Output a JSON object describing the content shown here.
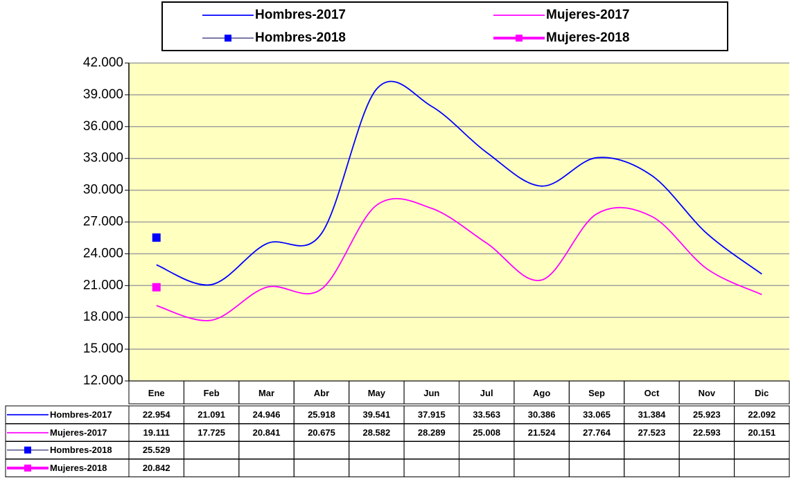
{
  "chart_data": {
    "type": "line",
    "categories": [
      "Ene",
      "Feb",
      "Mar",
      "Abr",
      "May",
      "Jun",
      "Jul",
      "Ago",
      "Sep",
      "Oct",
      "Nov",
      "Dic"
    ],
    "series": [
      {
        "name": "Hombres-2017",
        "color": "#0000ff",
        "marker": "none",
        "values": [
          22954,
          21091,
          24946,
          25918,
          39541,
          37915,
          33563,
          30386,
          33065,
          31384,
          25923,
          22092
        ],
        "value_labels": [
          "22.954",
          "21.091",
          "24.946",
          "25.918",
          "39.541",
          "37.915",
          "33.563",
          "30.386",
          "33.065",
          "31.384",
          "25.923",
          "22.092"
        ]
      },
      {
        "name": "Mujeres-2017",
        "color": "#ff00ff",
        "marker": "none",
        "values": [
          19111,
          17725,
          20841,
          20675,
          28582,
          28289,
          25008,
          21524,
          27764,
          27523,
          22593,
          20151
        ],
        "value_labels": [
          "19.111",
          "17.725",
          "20.841",
          "20.675",
          "28.582",
          "28.289",
          "25.008",
          "21.524",
          "27.764",
          "27.523",
          "22.593",
          "20.151"
        ]
      },
      {
        "name": "Hombres-2018",
        "color": "#0000ff",
        "marker": "square",
        "values": [
          25529,
          null,
          null,
          null,
          null,
          null,
          null,
          null,
          null,
          null,
          null,
          null
        ],
        "value_labels": [
          "25.529",
          null,
          null,
          null,
          null,
          null,
          null,
          null,
          null,
          null,
          null,
          null
        ]
      },
      {
        "name": "Mujeres-2018",
        "color": "#ff00ff",
        "marker": "square",
        "values": [
          20842,
          null,
          null,
          null,
          null,
          null,
          null,
          null,
          null,
          null,
          null,
          null
        ],
        "value_labels": [
          "20.842",
          null,
          null,
          null,
          null,
          null,
          null,
          null,
          null,
          null,
          null,
          null
        ]
      }
    ],
    "ylim": [
      12000,
      42000
    ],
    "yticks": [
      {
        "value": 12000,
        "label": "12.000"
      },
      {
        "value": 15000,
        "label": "15.000"
      },
      {
        "value": 18000,
        "label": "18.000"
      },
      {
        "value": 21000,
        "label": "21.000"
      },
      {
        "value": 24000,
        "label": "24.000"
      },
      {
        "value": 27000,
        "label": "27.000"
      },
      {
        "value": 30000,
        "label": "30.000"
      },
      {
        "value": 33000,
        "label": "33.000"
      },
      {
        "value": 36000,
        "label": "36.000"
      },
      {
        "value": 39000,
        "label": "39.000"
      },
      {
        "value": 42000,
        "label": "42.000"
      }
    ],
    "grid": true,
    "smooth": true,
    "legend": "top",
    "plot_background": "#ffffc0"
  }
}
